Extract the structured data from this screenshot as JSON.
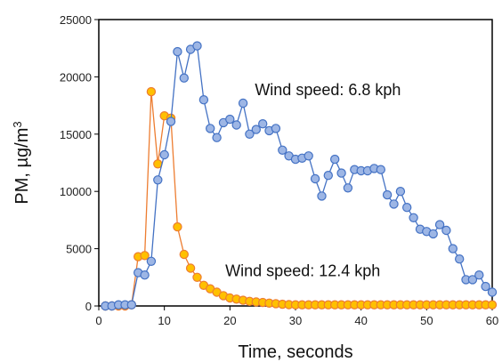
{
  "chart_data": {
    "type": "line",
    "xlabel": "Time, seconds",
    "ylabel_main": "PM, µg/m",
    "ylabel_sup": "3",
    "xlim": [
      0,
      60
    ],
    "ylim": [
      0,
      25000
    ],
    "x_ticks": [
      "0",
      "10",
      "20",
      "30",
      "40",
      "50",
      "60"
    ],
    "y_ticks": [
      "0",
      "5000",
      "10000",
      "15000",
      "20000",
      "25000"
    ],
    "grid": false,
    "legend": "none",
    "annotations": [
      {
        "text": "Wind speed: 6.8 kph",
        "x": 23.8,
        "y": 18400
      },
      {
        "text": "Wind speed: 12.4 kph",
        "x": 19.3,
        "y": 2600
      }
    ],
    "series": [
      {
        "name": "Wind speed: 6.8 kph",
        "color": "#4472C4",
        "fill": "#9DB6E5",
        "x": [
          1,
          2,
          3,
          4,
          5,
          6,
          7,
          8,
          9,
          10,
          11,
          12,
          13,
          14,
          15,
          16,
          17,
          18,
          19,
          20,
          21,
          22,
          23,
          24,
          25,
          26,
          27,
          28,
          29,
          30,
          31,
          32,
          33,
          34,
          35,
          36,
          37,
          38,
          39,
          40,
          41,
          42,
          43,
          44,
          45,
          46,
          47,
          48,
          49,
          50,
          51,
          52,
          53,
          54,
          55,
          56,
          57,
          58,
          59,
          60
        ],
        "values": [
          0,
          0,
          100,
          100,
          100,
          2900,
          2700,
          3900,
          11000,
          13200,
          16100,
          22200,
          19900,
          22400,
          22700,
          18000,
          15500,
          14700,
          16000,
          16300,
          15800,
          17700,
          15000,
          15400,
          15900,
          15300,
          15500,
          13600,
          13100,
          12800,
          12900,
          13100,
          11100,
          9600,
          11400,
          12800,
          11600,
          10300,
          11900,
          11800,
          11800,
          12000,
          11900,
          9700,
          8900,
          10000,
          8600,
          7700,
          6700,
          6500,
          6300,
          7100,
          6600,
          5000,
          4100,
          2300,
          2300,
          2700,
          1700,
          1200
        ]
      },
      {
        "name": "Wind speed: 12.4 kph",
        "color": "#ED7D31",
        "fill": "#FFC000",
        "x": [
          1,
          2,
          3,
          4,
          5,
          6,
          7,
          8,
          9,
          10,
          11,
          12,
          13,
          14,
          15,
          16,
          17,
          18,
          19,
          20,
          21,
          22,
          23,
          24,
          25,
          26,
          27,
          28,
          29,
          30,
          31,
          32,
          33,
          34,
          35,
          36,
          37,
          38,
          39,
          40,
          41,
          42,
          43,
          44,
          45,
          46,
          47,
          48,
          49,
          50,
          51,
          52,
          53,
          54,
          55,
          56,
          57,
          58,
          59,
          60
        ],
        "values": [
          0,
          0,
          0,
          0,
          100,
          4300,
          4400,
          18700,
          12400,
          16600,
          16400,
          6900,
          4500,
          3300,
          2500,
          1800,
          1500,
          1200,
          900,
          700,
          600,
          500,
          400,
          350,
          300,
          250,
          200,
          150,
          120,
          100,
          100,
          100,
          100,
          100,
          100,
          100,
          100,
          100,
          100,
          100,
          100,
          100,
          100,
          100,
          100,
          100,
          100,
          100,
          100,
          100,
          100,
          100,
          100,
          100,
          100,
          100,
          100,
          100,
          100,
          100
        ]
      }
    ]
  }
}
